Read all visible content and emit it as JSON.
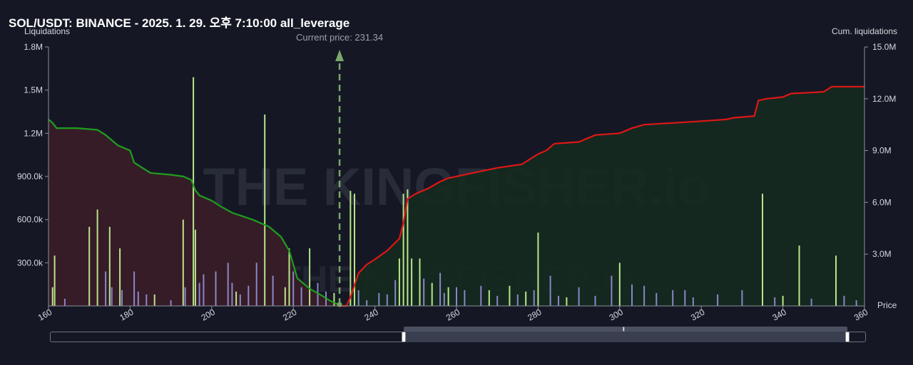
{
  "chart_data": {
    "type": "bar",
    "title": "SOL/USDT: BINANCE - 2025. 1. 29. 오후 7:10:00 all_leverage",
    "ylabel_left": "Liquidations",
    "ylabel_right": "Cum. liquidations",
    "xlabel": "Price",
    "xlim": [
      160,
      360
    ],
    "ylim_left": [
      0,
      1800000
    ],
    "ylim_right": [
      0,
      15000000
    ],
    "x_ticks": [
      160,
      180,
      200,
      220,
      240,
      260,
      280,
      300,
      320,
      340,
      360
    ],
    "y_left_ticks": [
      {
        "v": 300000,
        "label": "300.0k"
      },
      {
        "v": 600000,
        "label": "600.0k"
      },
      {
        "v": 900000,
        "label": "900.0k"
      },
      {
        "v": 1200000,
        "label": "1.2M"
      },
      {
        "v": 1500000,
        "label": "1.5M"
      },
      {
        "v": 1800000,
        "label": "1.8M"
      }
    ],
    "y_right_ticks": [
      {
        "v": 3000000,
        "label": "3.0M"
      },
      {
        "v": 6000000,
        "label": "6.0M"
      },
      {
        "v": 9000000,
        "label": "9.0M"
      },
      {
        "v": 12000000,
        "label": "12.0M"
      },
      {
        "v": 15000000,
        "label": "15.0M"
      }
    ],
    "current_price": {
      "value": 231.34,
      "label": "Current price: 231.34"
    },
    "watermark": "THE KINGFISHER.io",
    "colors": {
      "long_bar": "#b9e58a",
      "small_bar": "#8a86c8",
      "long_line": "#1f9e1f",
      "short_line": "#e01616",
      "long_fill": "#3a1d28",
      "short_fill": "#142a1f",
      "current_price": "#7aa86a"
    },
    "long_cum_line": [
      [
        160,
        10.8
      ],
      [
        161,
        10.6
      ],
      [
        162,
        10.3
      ],
      [
        167,
        10.3
      ],
      [
        172,
        10.2
      ],
      [
        174,
        9.9
      ],
      [
        176,
        9.5
      ],
      [
        177,
        9.3
      ],
      [
        180,
        9.0
      ],
      [
        181,
        8.3
      ],
      [
        183,
        8.0
      ],
      [
        185,
        7.7
      ],
      [
        190,
        7.6
      ],
      [
        193,
        7.5
      ],
      [
        195,
        7.3
      ],
      [
        196,
        6.7
      ],
      [
        197,
        6.4
      ],
      [
        200,
        6.1
      ],
      [
        202,
        5.8
      ],
      [
        205,
        5.4
      ],
      [
        210,
        5.0
      ],
      [
        214,
        4.6
      ],
      [
        217,
        4.0
      ],
      [
        219,
        3.2
      ],
      [
        221,
        1.6
      ],
      [
        224,
        1.0
      ],
      [
        227,
        0.6
      ],
      [
        229,
        0.3
      ],
      [
        231.34,
        0.05
      ]
    ],
    "short_cum_line": [
      [
        231.34,
        0.0
      ],
      [
        233,
        0.0
      ],
      [
        234,
        0.5
      ],
      [
        236,
        1.9
      ],
      [
        238,
        2.4
      ],
      [
        240,
        2.7
      ],
      [
        243,
        3.2
      ],
      [
        246,
        3.9
      ],
      [
        247,
        4.8
      ],
      [
        248,
        6.2
      ],
      [
        250,
        6.5
      ],
      [
        253,
        6.8
      ],
      [
        256,
        7.2
      ],
      [
        258,
        7.4
      ],
      [
        262,
        7.6
      ],
      [
        266,
        7.8
      ],
      [
        270,
        8.0
      ],
      [
        276,
        8.2
      ],
      [
        278,
        8.5
      ],
      [
        280,
        8.8
      ],
      [
        282,
        9.0
      ],
      [
        284,
        9.4
      ],
      [
        290,
        9.5
      ],
      [
        294,
        9.9
      ],
      [
        300,
        10.0
      ],
      [
        303,
        10.3
      ],
      [
        306,
        10.5
      ],
      [
        313,
        10.6
      ],
      [
        320,
        10.7
      ],
      [
        326,
        10.8
      ],
      [
        328,
        10.9
      ],
      [
        333,
        11.0
      ],
      [
        334,
        11.9
      ],
      [
        336,
        12.0
      ],
      [
        340,
        12.1
      ],
      [
        342,
        12.3
      ],
      [
        350,
        12.4
      ],
      [
        352,
        12.7
      ],
      [
        360,
        12.7
      ]
    ],
    "bars_long": [
      {
        "x": 161.5,
        "v": 350000
      },
      {
        "x": 161,
        "v": 130000
      },
      {
        "x": 170,
        "v": 550000
      },
      {
        "x": 172,
        "v": 670000
      },
      {
        "x": 175,
        "v": 550000
      },
      {
        "x": 177.5,
        "v": 400000
      },
      {
        "x": 186,
        "v": 80000
      },
      {
        "x": 193,
        "v": 600000
      },
      {
        "x": 195.5,
        "v": 1590000
      },
      {
        "x": 196,
        "v": 530000
      },
      {
        "x": 206,
        "v": 100000
      },
      {
        "x": 213,
        "v": 1330000
      },
      {
        "x": 218,
        "v": 130000
      },
      {
        "x": 219,
        "v": 400000
      },
      {
        "x": 224,
        "v": 400000
      },
      {
        "x": 230,
        "v": 90000
      },
      {
        "x": 234,
        "v": 800000
      },
      {
        "x": 235,
        "v": 780000
      },
      {
        "x": 246,
        "v": 330000
      },
      {
        "x": 247,
        "v": 780000
      },
      {
        "x": 248,
        "v": 810000
      },
      {
        "x": 249,
        "v": 330000
      },
      {
        "x": 251,
        "v": 330000
      },
      {
        "x": 254,
        "v": 160000
      },
      {
        "x": 258,
        "v": 130000
      },
      {
        "x": 268,
        "v": 110000
      },
      {
        "x": 273,
        "v": 140000
      },
      {
        "x": 277,
        "v": 100000
      },
      {
        "x": 280,
        "v": 510000
      },
      {
        "x": 287,
        "v": 60000
      },
      {
        "x": 300,
        "v": 300000
      },
      {
        "x": 335,
        "v": 780000
      },
      {
        "x": 340,
        "v": 70000
      },
      {
        "x": 344,
        "v": 420000
      },
      {
        "x": 353,
        "v": 350000
      }
    ],
    "bars_small": [
      {
        "x": 164,
        "v": 50000
      },
      {
        "x": 174,
        "v": 240000
      },
      {
        "x": 175.5,
        "v": 130000
      },
      {
        "x": 178,
        "v": 110000
      },
      {
        "x": 181,
        "v": 240000
      },
      {
        "x": 182,
        "v": 100000
      },
      {
        "x": 184,
        "v": 80000
      },
      {
        "x": 190,
        "v": 40000
      },
      {
        "x": 193.5,
        "v": 130000
      },
      {
        "x": 197,
        "v": 160000
      },
      {
        "x": 198,
        "v": 220000
      },
      {
        "x": 201,
        "v": 240000
      },
      {
        "x": 204,
        "v": 300000
      },
      {
        "x": 205,
        "v": 160000
      },
      {
        "x": 207,
        "v": 80000
      },
      {
        "x": 209,
        "v": 140000
      },
      {
        "x": 211,
        "v": 300000
      },
      {
        "x": 215,
        "v": 210000
      },
      {
        "x": 220,
        "v": 240000
      },
      {
        "x": 222,
        "v": 130000
      },
      {
        "x": 226,
        "v": 160000
      },
      {
        "x": 228,
        "v": 100000
      },
      {
        "x": 236,
        "v": 110000
      },
      {
        "x": 238,
        "v": 40000
      },
      {
        "x": 241,
        "v": 90000
      },
      {
        "x": 243,
        "v": 80000
      },
      {
        "x": 245,
        "v": 180000
      },
      {
        "x": 252,
        "v": 190000
      },
      {
        "x": 256,
        "v": 230000
      },
      {
        "x": 257,
        "v": 90000
      },
      {
        "x": 260,
        "v": 130000
      },
      {
        "x": 262,
        "v": 110000
      },
      {
        "x": 266,
        "v": 140000
      },
      {
        "x": 270,
        "v": 70000
      },
      {
        "x": 275,
        "v": 80000
      },
      {
        "x": 279,
        "v": 110000
      },
      {
        "x": 283,
        "v": 210000
      },
      {
        "x": 285,
        "v": 70000
      },
      {
        "x": 290,
        "v": 130000
      },
      {
        "x": 294,
        "v": 70000
      },
      {
        "x": 298,
        "v": 210000
      },
      {
        "x": 303,
        "v": 150000
      },
      {
        "x": 306,
        "v": 140000
      },
      {
        "x": 309,
        "v": 90000
      },
      {
        "x": 313,
        "v": 110000
      },
      {
        "x": 316,
        "v": 110000
      },
      {
        "x": 318,
        "v": 60000
      },
      {
        "x": 324,
        "v": 80000
      },
      {
        "x": 330,
        "v": 110000
      },
      {
        "x": 338,
        "v": 60000
      },
      {
        "x": 347,
        "v": 50000
      },
      {
        "x": 355,
        "v": 70000
      },
      {
        "x": 358,
        "v": 40000
      }
    ]
  }
}
